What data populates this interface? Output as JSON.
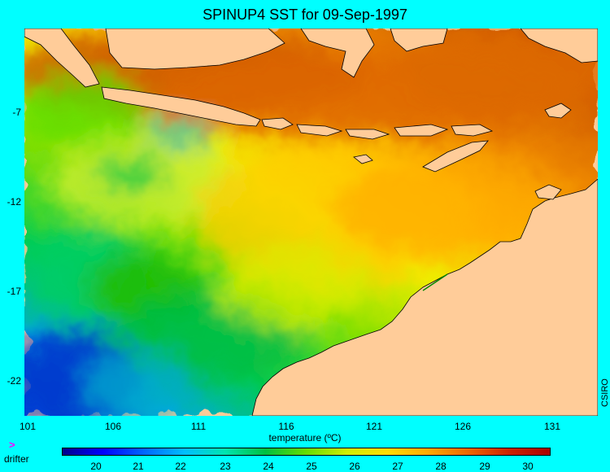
{
  "title": "SPINUP4 SST for 09-Sep-1997",
  "y_ticks": [
    "-7",
    "-12",
    "-17",
    "-22"
  ],
  "x_ticks": [
    "101",
    "106",
    "111",
    "116",
    "121",
    "126",
    "131"
  ],
  "colorbar_label": "temperature (ºC)",
  "colorbar_ticks": [
    "20",
    "21",
    "22",
    "23",
    "24",
    "25",
    "26",
    "27",
    "28",
    "29",
    "30"
  ],
  "legend": {
    "symbol": ">",
    "label": "drifter"
  },
  "credit": "CSIRO",
  "colors": {
    "background": "#00ffff",
    "land": "#ffcc99",
    "drifter": "#ff00ff",
    "scale": [
      "#00008b",
      "#0000ff",
      "#0066ff",
      "#00bfff",
      "#00e5b0",
      "#00c040",
      "#66dd00",
      "#d0ee00",
      "#ffdd00",
      "#ffaa00",
      "#ee6600",
      "#cc2200",
      "#aa0000"
    ]
  }
}
